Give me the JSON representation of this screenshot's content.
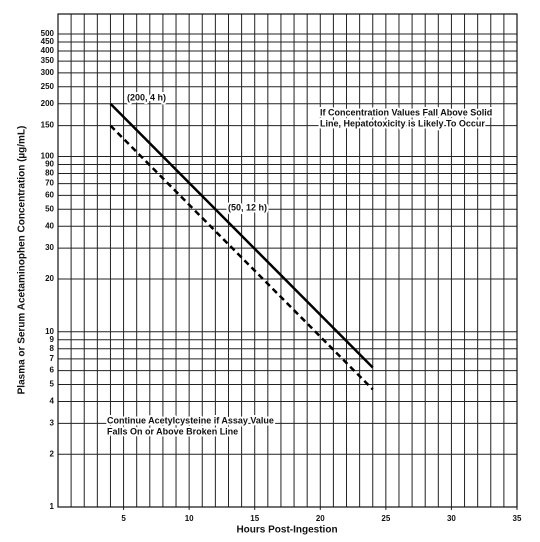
{
  "chart_data": {
    "type": "line",
    "xlabel": "Hours Post-Ingestion",
    "ylabel": "Plasma or Serum Acetaminophen Concentration (µg/mL)",
    "series": [
      {
        "x": [
          4,
          24
        ],
        "values": [
          200,
          6.25
        ],
        "color": "#000000",
        "dash": false
      },
      {
        "x": [
          4,
          24
        ],
        "values": [
          150,
          4.69
        ],
        "color": "#000000",
        "dash": true
      }
    ],
    "xlim": [
      0,
      35
    ],
    "xticks": [
      5,
      10,
      15,
      20,
      25,
      30,
      35
    ],
    "xgrid": [
      1,
      2,
      3,
      4,
      5,
      6,
      7,
      8,
      9,
      10,
      11,
      12,
      13,
      14,
      15,
      16,
      17,
      18,
      19,
      20,
      21,
      22,
      23,
      24,
      25,
      26,
      27,
      28,
      29,
      30,
      31,
      32,
      33,
      34
    ],
    "ylim": [
      1,
      650
    ],
    "log_y": true,
    "yticks": [
      1,
      2,
      3,
      4,
      5,
      6,
      7,
      8,
      9,
      10,
      20,
      30,
      40,
      50,
      60,
      70,
      80,
      90,
      100,
      150,
      200,
      250,
      300,
      350,
      400,
      450,
      500
    ],
    "grid": true,
    "annotations": {
      "start_point": "(200, 4 h)",
      "mid_point": "(50, 12 h)",
      "solid_note": [
        "If Concentration Values Fall Above Solid",
        "Line, Hepatotoxicity is Likely To Occur"
      ],
      "broken_note": [
        "Continue Acetylcysteine if Assay Value",
        "Falls On or Above Broken Line"
      ]
    }
  }
}
